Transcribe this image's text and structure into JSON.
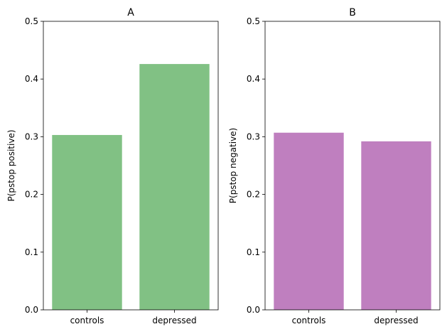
{
  "chart_data": [
    {
      "type": "bar",
      "title": "A",
      "xlabel": "",
      "ylabel": "P(pstop positive)",
      "categories": [
        "controls",
        "depressed"
      ],
      "values": [
        0.303,
        0.426
      ],
      "ylim": [
        0,
        0.5
      ],
      "yticks": [
        "0.0",
        "0.1",
        "0.2",
        "0.3",
        "0.4",
        "0.5"
      ],
      "color": "#81c184",
      "grid": false
    },
    {
      "type": "bar",
      "title": "B",
      "xlabel": "",
      "ylabel": "P(pstop negative)",
      "categories": [
        "controls",
        "depressed"
      ],
      "values": [
        0.307,
        0.292
      ],
      "ylim": [
        0,
        0.5
      ],
      "yticks": [
        "0.0",
        "0.1",
        "0.2",
        "0.3",
        "0.4",
        "0.5"
      ],
      "color": "#bf7fbf",
      "grid": false
    }
  ]
}
